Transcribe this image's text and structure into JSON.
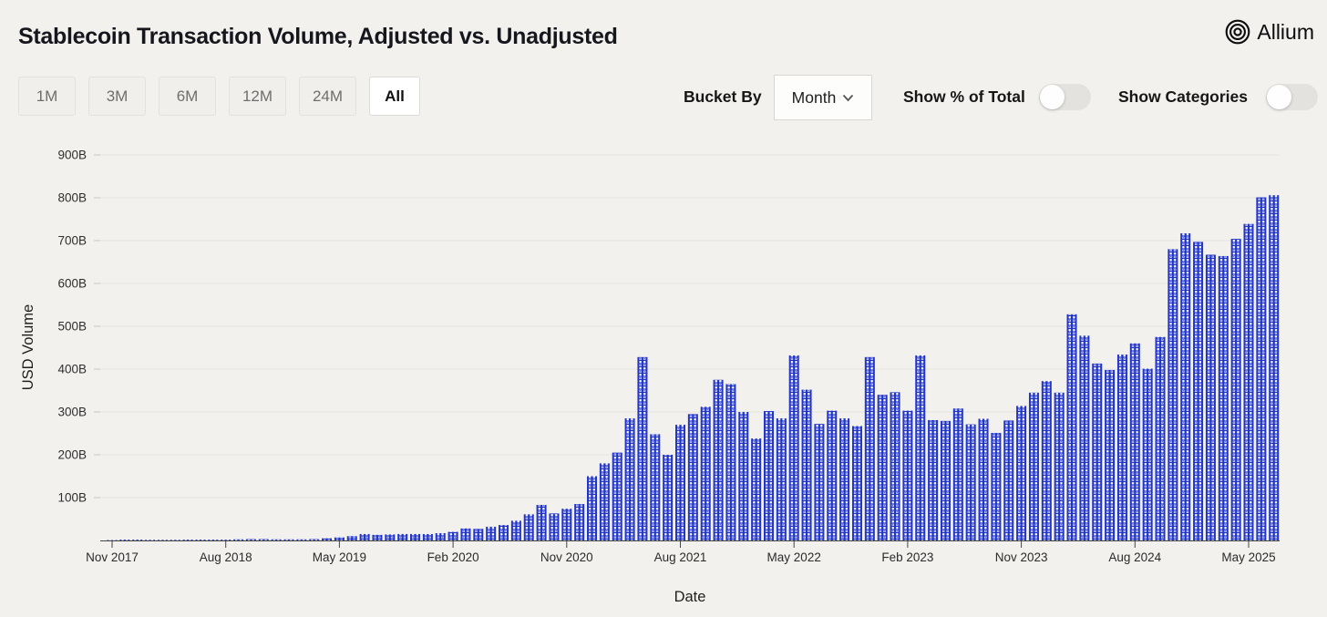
{
  "header": {
    "title": "Stablecoin Transaction Volume, Adjusted vs. Unadjusted",
    "brand": "Allium"
  },
  "controls": {
    "range_buttons": [
      "1M",
      "3M",
      "6M",
      "12M",
      "24M",
      "All"
    ],
    "selected_range": "All",
    "bucket_by": {
      "label": "Bucket By",
      "value": "Month"
    },
    "toggles": [
      {
        "label": "Show % of Total",
        "state": "off"
      },
      {
        "label": "Show Categories",
        "state": "off"
      }
    ]
  },
  "chart_data": {
    "type": "bar",
    "title": "Stablecoin Transaction Volume, Adjusted vs. Unadjusted",
    "xlabel": "Date",
    "ylabel": "USD Volume",
    "unit": "billions USD",
    "bar_color": "#2134c8",
    "grid": true,
    "ylim": [
      0,
      950
    ],
    "y_ticks": [
      "100B",
      "200B",
      "300B",
      "400B",
      "500B",
      "600B",
      "700B",
      "800B",
      "900B"
    ],
    "x_tick_labels": [
      "Nov 2017",
      "Aug 2018",
      "May 2019",
      "Feb 2020",
      "Nov 2020",
      "Aug 2021",
      "May 2022",
      "Feb 2023",
      "Nov 2023",
      "Aug 2024",
      "May 2025"
    ],
    "x_tick_every": 9,
    "categories": [
      "Nov 2017",
      "Dec 2017",
      "Jan 2018",
      "Feb 2018",
      "Mar 2018",
      "Apr 2018",
      "May 2018",
      "Jun 2018",
      "Jul 2018",
      "Aug 2018",
      "Sep 2018",
      "Oct 2018",
      "Nov 2018",
      "Dec 2018",
      "Jan 2019",
      "Feb 2019",
      "Mar 2019",
      "Apr 2019",
      "May 2019",
      "Jun 2019",
      "Jul 2019",
      "Aug 2019",
      "Sep 2019",
      "Oct 2019",
      "Nov 2019",
      "Dec 2019",
      "Jan 2020",
      "Feb 2020",
      "Mar 2020",
      "Apr 2020",
      "May 2020",
      "Jun 2020",
      "Jul 2020",
      "Aug 2020",
      "Sep 2020",
      "Oct 2020",
      "Nov 2020",
      "Dec 2020",
      "Jan 2021",
      "Feb 2021",
      "Mar 2021",
      "Apr 2021",
      "May 2021",
      "Jun 2021",
      "Jul 2021",
      "Aug 2021",
      "Sep 2021",
      "Oct 2021",
      "Nov 2021",
      "Dec 2021",
      "Jan 2022",
      "Feb 2022",
      "Mar 2022",
      "Apr 2022",
      "May 2022",
      "Jun 2022",
      "Jul 2022",
      "Aug 2022",
      "Sep 2022",
      "Oct 2022",
      "Nov 2022",
      "Dec 2022",
      "Jan 2023",
      "Feb 2023",
      "Mar 2023",
      "Apr 2023",
      "May 2023",
      "Jun 2023",
      "Jul 2023",
      "Aug 2023",
      "Sep 2023",
      "Oct 2023",
      "Nov 2023",
      "Dec 2023",
      "Jan 2024",
      "Feb 2024",
      "Mar 2024",
      "Apr 2024",
      "May 2024",
      "Jun 2024",
      "Jul 2024",
      "Aug 2024",
      "Sep 2024",
      "Oct 2024",
      "Nov 2024",
      "Dec 2024",
      "Jan 2025",
      "Feb 2025",
      "Mar 2025",
      "Apr 2025",
      "May 2025",
      "Jun 2025",
      "Jul 2025"
    ],
    "values": [
      1,
      2,
      2,
      1.5,
      1.5,
      1.5,
      2,
      2,
      2,
      2,
      2.5,
      3,
      3,
      2.5,
      2.5,
      2.5,
      3,
      5,
      7,
      10,
      15,
      13,
      14,
      15,
      15,
      15,
      17,
      20,
      28,
      27,
      32,
      36,
      46,
      61,
      83,
      63,
      74,
      85,
      150,
      180,
      205,
      285,
      428,
      248,
      200,
      270,
      295,
      312,
      375,
      365,
      300,
      238,
      302,
      285,
      432,
      352,
      272,
      303,
      285,
      267,
      428,
      340,
      346,
      303,
      432,
      281,
      279,
      308,
      271,
      284,
      251,
      280,
      314,
      345,
      372,
      345,
      528,
      478,
      413,
      398,
      434,
      460,
      401,
      475,
      680,
      717,
      697,
      667,
      664,
      704,
      739,
      801,
      806
    ]
  }
}
